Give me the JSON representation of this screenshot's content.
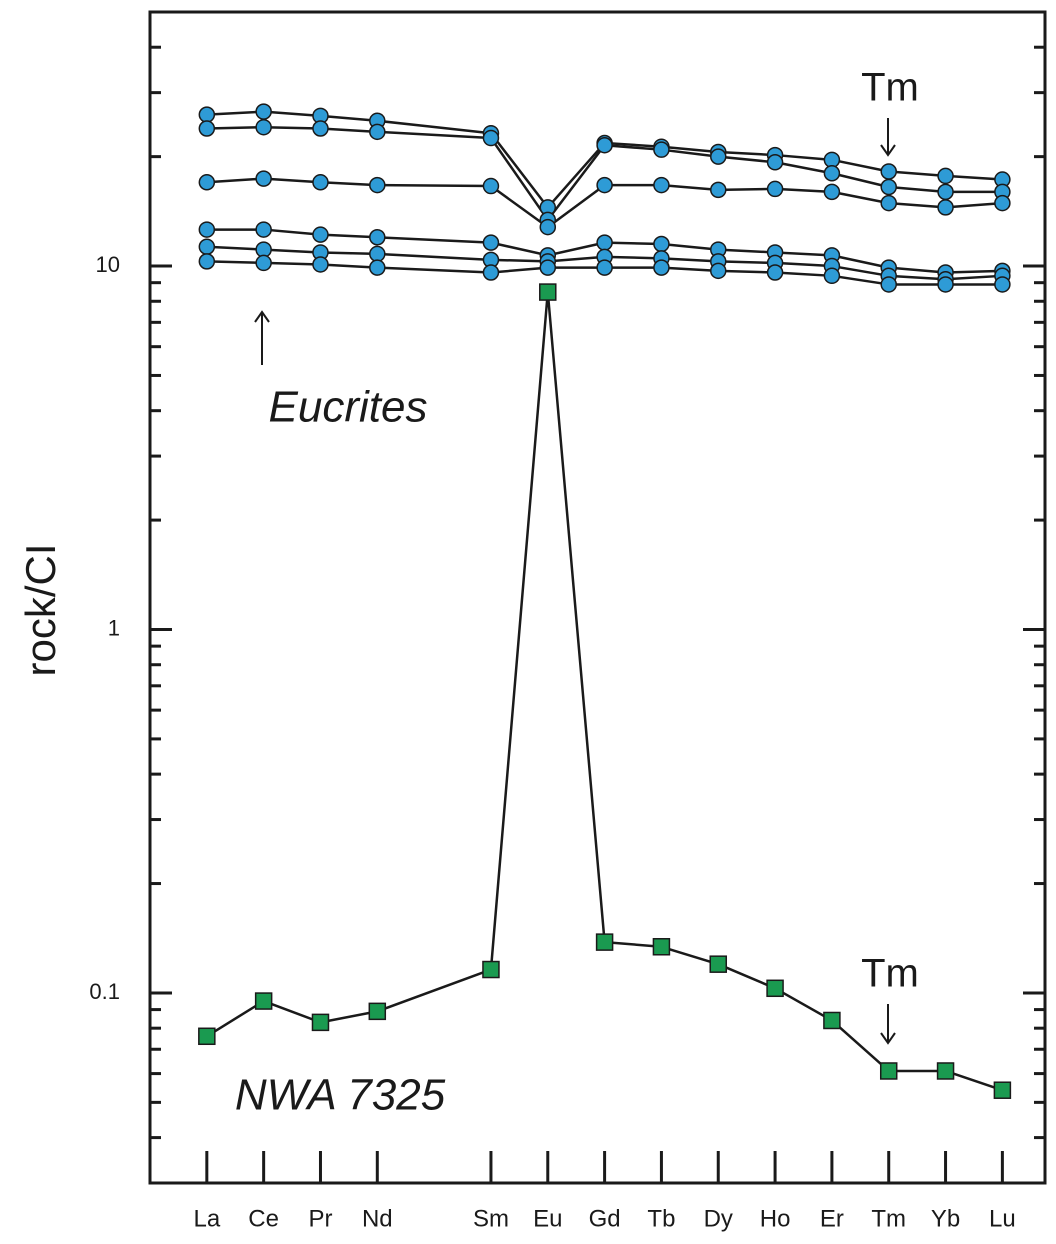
{
  "chart_data": {
    "type": "line",
    "y_label": "rock/CI",
    "log_y": true,
    "x": [
      57,
      58,
      59,
      60,
      62,
      63,
      64,
      65,
      66,
      67,
      68,
      69,
      70,
      71
    ],
    "xlim": [
      56,
      71.75
    ],
    "xticks": [
      {
        "value": 57,
        "label": "La"
      },
      {
        "value": 58,
        "label": "Ce"
      },
      {
        "value": 59,
        "label": "Pr"
      },
      {
        "value": 60,
        "label": "Nd"
      },
      {
        "value": 62,
        "label": "Sm"
      },
      {
        "value": 63,
        "label": "Eu"
      },
      {
        "value": 64,
        "label": "Gd"
      },
      {
        "value": 65,
        "label": "Tb"
      },
      {
        "value": 66,
        "label": "Dy"
      },
      {
        "value": 67,
        "label": "Ho"
      },
      {
        "value": 68,
        "label": "Er"
      },
      {
        "value": 69,
        "label": "Tm"
      },
      {
        "value": 70,
        "label": "Yb"
      },
      {
        "value": 71,
        "label": "Lu"
      }
    ],
    "ylim": [
      0.03,
      50
    ],
    "yticks": [
      0.1,
      1,
      10
    ],
    "minor_yticks": [
      0.04,
      0.05,
      0.06,
      0.07,
      0.08,
      0.09,
      0.2,
      0.3,
      0.4,
      0.5,
      0.6,
      0.7,
      0.8,
      0.9,
      2,
      3,
      4,
      5,
      6,
      7,
      8,
      9,
      20,
      30,
      40,
      50
    ],
    "series": [
      {
        "color": "#2e9bd6",
        "marker": "circle",
        "values": [
          26.1,
          26.6,
          25.9,
          25.1,
          23.2,
          14.5,
          21.8,
          21.3,
          20.6,
          20.2,
          19.6,
          18.2,
          17.7,
          17.3
        ]
      },
      {
        "color": "#2e9bd6",
        "marker": "circle",
        "values": [
          23.9,
          24.1,
          23.9,
          23.4,
          22.5,
          13.4,
          21.5,
          20.9,
          20.0,
          19.3,
          18.0,
          16.5,
          16.0,
          16.0
        ]
      },
      {
        "color": "#2e9bd6",
        "marker": "circle",
        "values": [
          17.0,
          17.4,
          17.0,
          16.7,
          16.6,
          12.8,
          16.7,
          16.7,
          16.2,
          16.3,
          16.0,
          14.9,
          14.5,
          14.9
        ]
      },
      {
        "color": "#2e9bd6",
        "marker": "circle",
        "values": [
          12.6,
          12.6,
          12.2,
          12.0,
          11.6,
          10.7,
          11.6,
          11.5,
          11.1,
          10.9,
          10.7,
          9.9,
          9.6,
          9.7
        ]
      },
      {
        "color": "#2e9bd6",
        "marker": "circle",
        "values": [
          11.3,
          11.1,
          10.9,
          10.8,
          10.4,
          10.3,
          10.6,
          10.5,
          10.3,
          10.2,
          10.0,
          9.4,
          9.2,
          9.4
        ]
      },
      {
        "color": "#2e9bd6",
        "marker": "circle",
        "values": [
          10.3,
          10.2,
          10.1,
          9.9,
          9.6,
          9.9,
          9.9,
          9.9,
          9.7,
          9.6,
          9.4,
          8.9,
          8.9,
          8.9
        ]
      },
      {
        "color": "#1a9a50",
        "marker": "square",
        "values": [
          0.076,
          0.095,
          0.083,
          0.089,
          0.116,
          8.48,
          0.138,
          0.134,
          0.12,
          0.103,
          0.084,
          0.061,
          0.061,
          0.054
        ]
      }
    ],
    "annotations": [
      {
        "text": "Tm",
        "style": "normal"
      },
      {
        "text": "Eucrites",
        "style": "italic"
      },
      {
        "text": "Tm",
        "style": "normal"
      },
      {
        "text": "NWA 7325",
        "style": "italic"
      }
    ]
  }
}
